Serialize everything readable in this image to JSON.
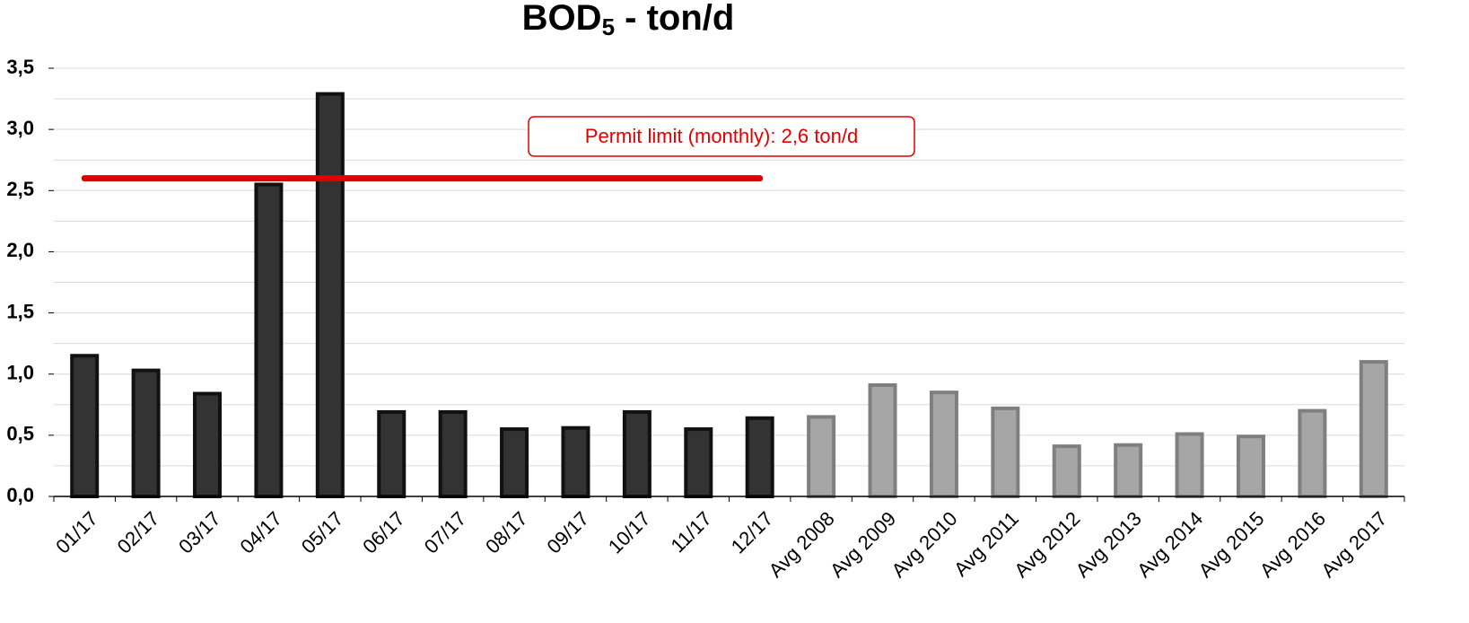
{
  "chart_data": {
    "type": "bar",
    "title": "BOD",
    "title_subscript": "5",
    "title_rest": " - ton/d",
    "categories": [
      "01/17",
      "02/17",
      "03/17",
      "04/17",
      "05/17",
      "06/17",
      "07/17",
      "08/17",
      "09/17",
      "10/17",
      "11/17",
      "12/17",
      "Avg 2008",
      "Avg 2009",
      "Avg 2010",
      "Avg 2011",
      "Avg 2012",
      "Avg 2013",
      "Avg 2014",
      "Avg 2015",
      "Avg 2016",
      "Avg 2017"
    ],
    "series": [
      {
        "color": "#333333",
        "stroke": "#111111",
        "values": [
          1.15,
          1.03,
          0.84,
          2.55,
          3.29,
          0.69,
          0.69,
          0.55,
          0.56,
          0.69,
          0.55,
          0.64,
          null,
          null,
          null,
          null,
          null,
          null,
          null,
          null,
          null,
          null
        ]
      },
      {
        "color": "#a6a6a6",
        "stroke": "#7f7f7f",
        "values": [
          null,
          null,
          null,
          null,
          null,
          null,
          null,
          null,
          null,
          null,
          null,
          null,
          0.65,
          0.91,
          0.85,
          0.72,
          0.41,
          0.42,
          0.51,
          0.49,
          0.7,
          1.1
        ]
      }
    ],
    "ylim": [
      0,
      3.5
    ],
    "yticks": [
      {
        "value": 0,
        "label": "0,0"
      },
      {
        "value": 0.5,
        "label": "0,5"
      },
      {
        "value": 1,
        "label": "1,0"
      },
      {
        "value": 1.5,
        "label": "1,5"
      },
      {
        "value": 2,
        "label": "2,0"
      },
      {
        "value": 2.5,
        "label": "2,5"
      },
      {
        "value": 3,
        "label": "3,0"
      },
      {
        "value": 3.5,
        "label": "3,5"
      }
    ],
    "y_minor_ticks": [
      0.25,
      0.75,
      1.25,
      1.75,
      2.25,
      2.75,
      3.25
    ],
    "grid": true,
    "reference_line": {
      "value": 2.6,
      "color": "#e00000",
      "label": "Permit limit (monthly): 2,6 ton/d"
    }
  }
}
